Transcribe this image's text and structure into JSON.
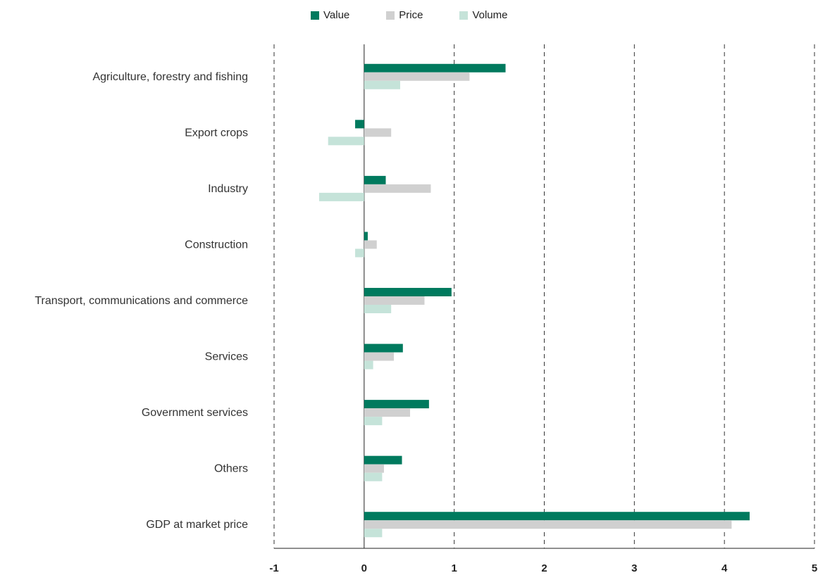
{
  "chart_data": {
    "type": "bar",
    "orientation": "horizontal",
    "categories": [
      "Agriculture, forestry and fishing",
      "Export crops",
      "Industry",
      "Construction",
      "Transport, communications and commerce",
      "Services",
      "Government services",
      "Others",
      "GDP at market price"
    ],
    "series": [
      {
        "name": "Value",
        "color": "#007a5e",
        "values": [
          1.57,
          -0.1,
          0.24,
          0.04,
          0.97,
          0.43,
          0.72,
          0.42,
          4.28
        ]
      },
      {
        "name": "Price",
        "color": "#d0d0d0",
        "values": [
          1.17,
          0.3,
          0.74,
          0.14,
          0.67,
          0.33,
          0.51,
          0.22,
          4.08
        ]
      },
      {
        "name": "Volume",
        "color": "#c5e3d9",
        "values": [
          0.4,
          -0.4,
          -0.5,
          -0.1,
          0.3,
          0.1,
          0.2,
          0.2,
          0.2
        ]
      }
    ],
    "x_ticks": [
      "-1",
      "0",
      "1",
      "2",
      "3",
      "4",
      "5"
    ],
    "xlim": [
      -1,
      5
    ],
    "grid": "vertical dashed",
    "legend_position": "top",
    "title": "",
    "xlabel": "",
    "ylabel": ""
  }
}
